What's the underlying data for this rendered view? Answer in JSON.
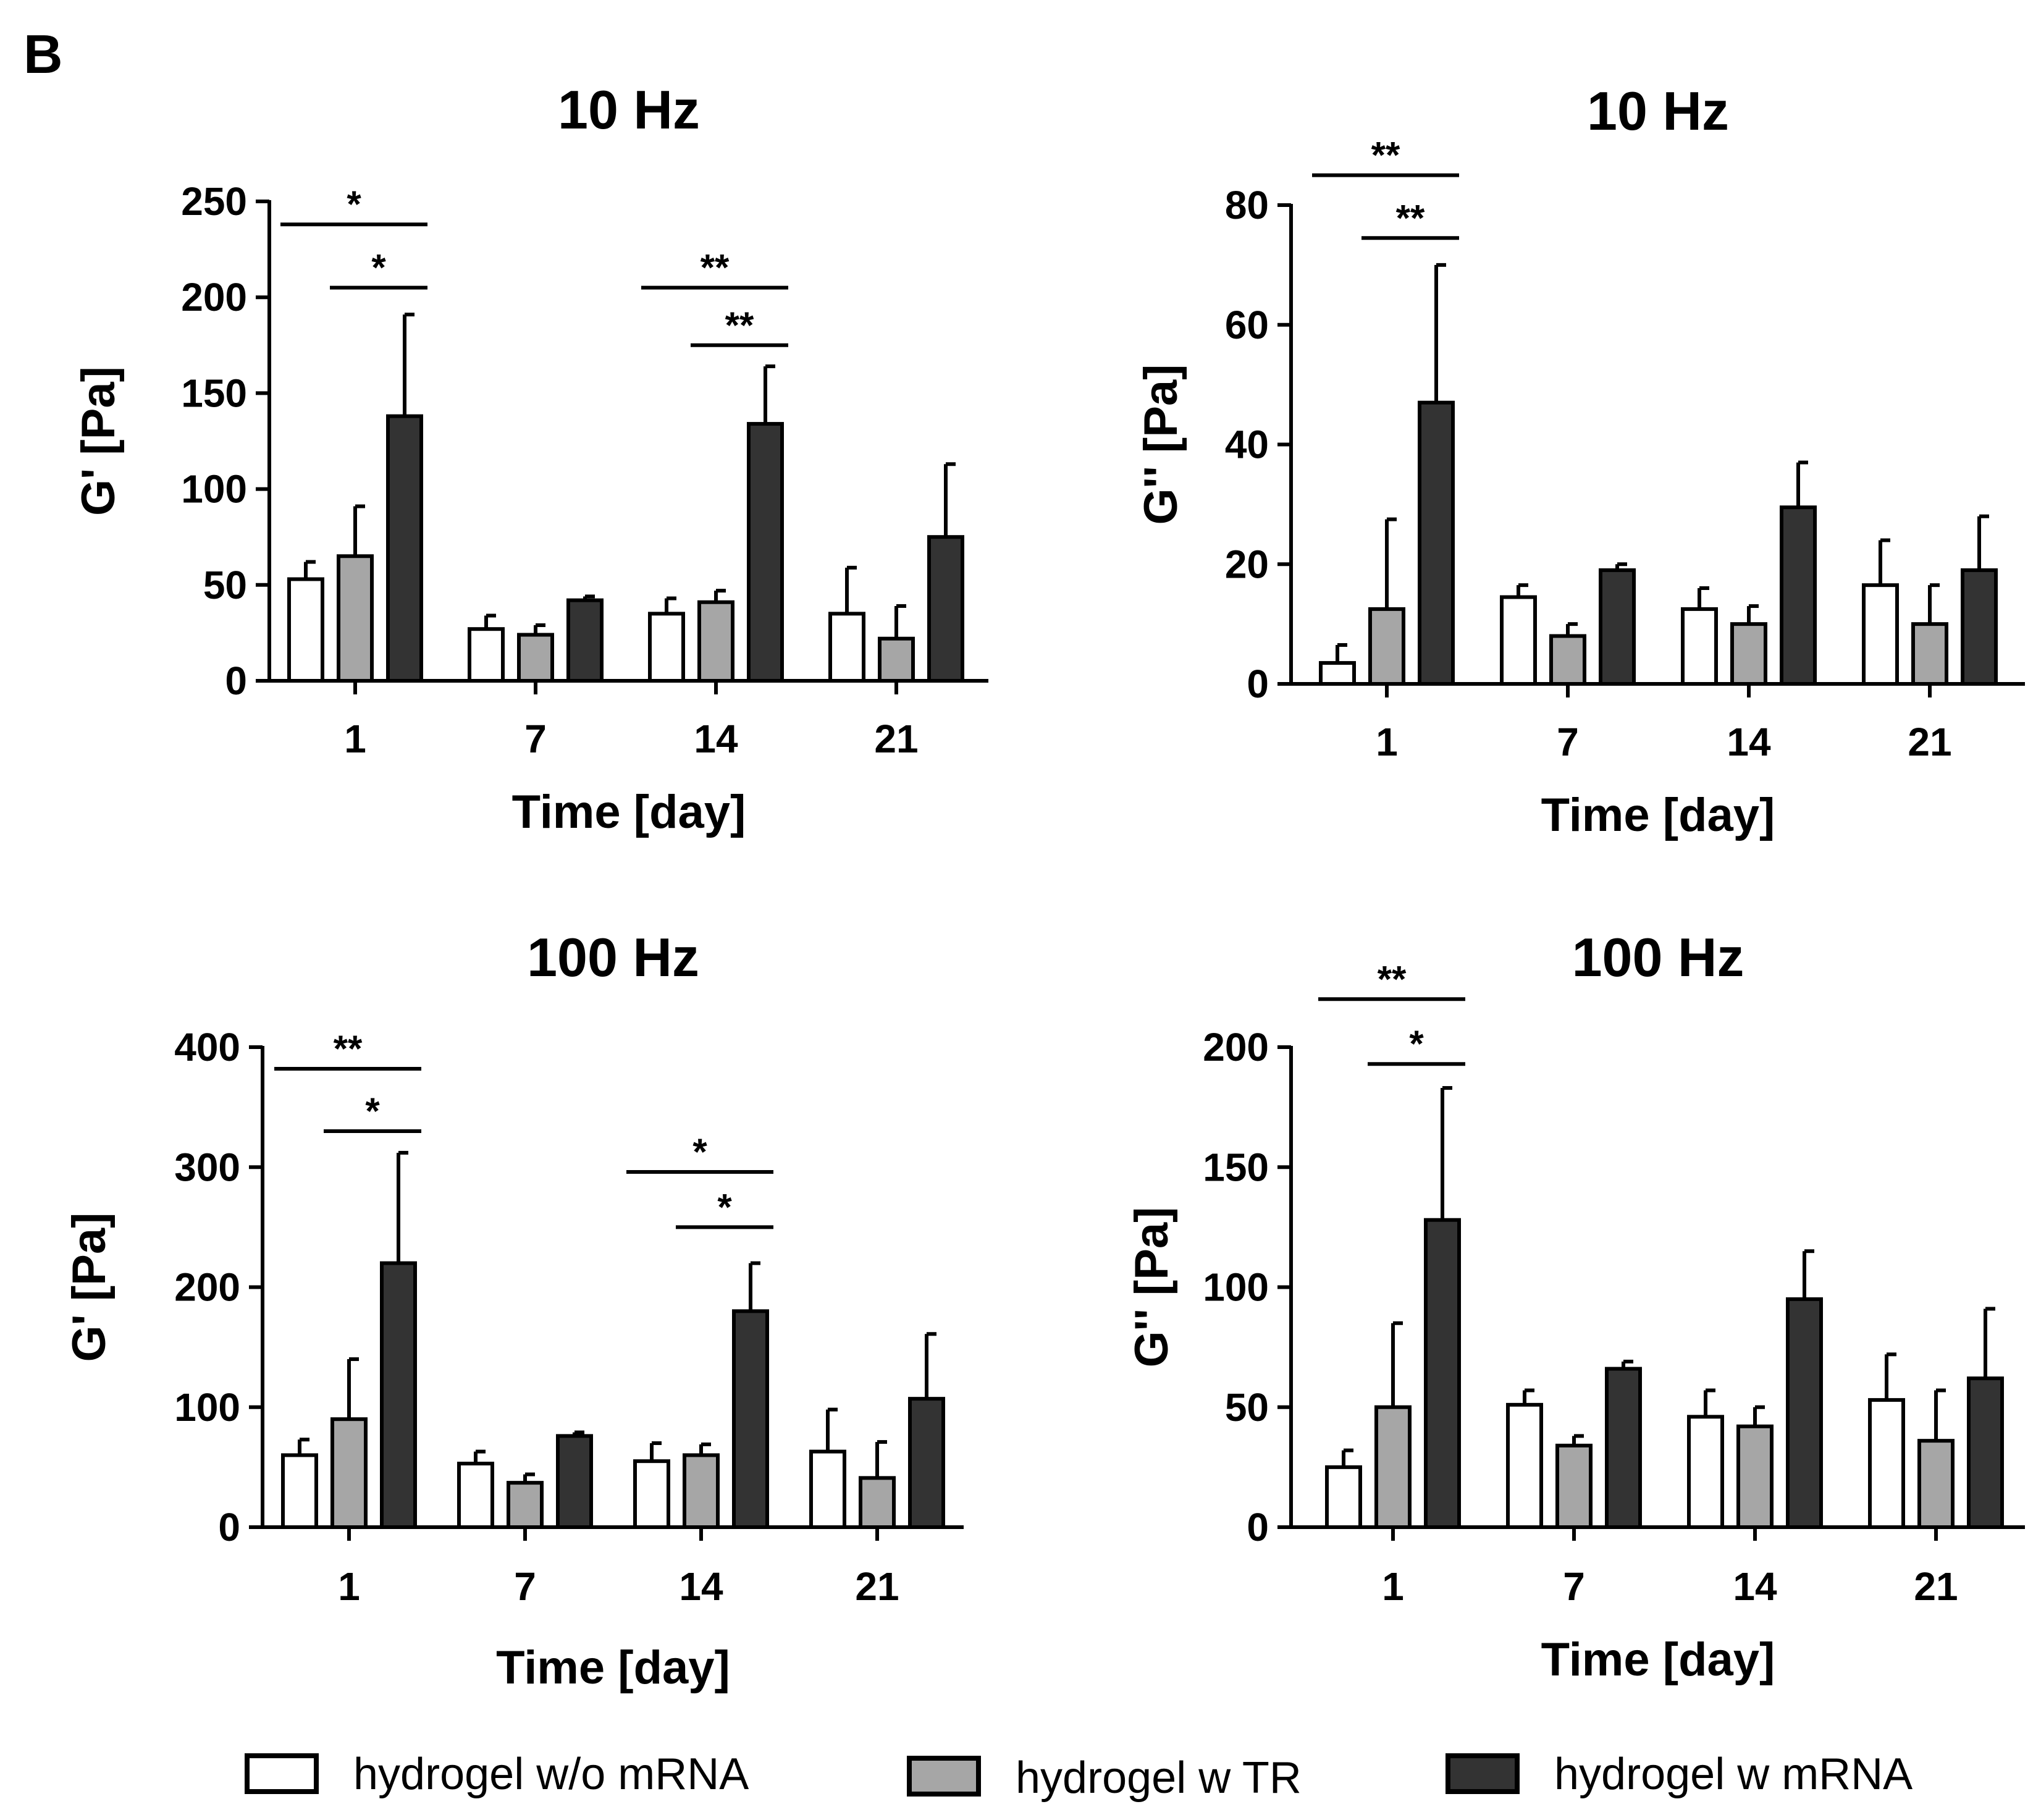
{
  "panel_label": "B",
  "legend": [
    {
      "label": "hydrogel w/o mRNA",
      "color": "#ffffff"
    },
    {
      "label": "hydrogel w TR",
      "color": "#a6a6a6"
    },
    {
      "label": "hydrogel w mRNA",
      "color": "#333333"
    }
  ],
  "chart_data": [
    {
      "type": "bar",
      "title": "10 Hz",
      "xlabel": "Time [day]",
      "ylabel": "G' [Pa]",
      "categories": [
        "1",
        "7",
        "14",
        "21"
      ],
      "ylim": [
        0,
        250
      ],
      "yticks": [
        0,
        50,
        100,
        150,
        200,
        250
      ],
      "series": [
        {
          "name": "hydrogel w/o mRNA",
          "values": [
            53,
            27,
            35,
            35
          ],
          "errors": [
            9,
            7,
            8,
            24
          ]
        },
        {
          "name": "hydrogel w TR",
          "values": [
            65,
            24,
            41,
            22
          ],
          "errors": [
            26,
            5,
            6,
            17
          ]
        },
        {
          "name": "hydrogel w mRNA",
          "values": [
            138,
            42,
            134,
            75
          ],
          "errors": [
            53,
            2,
            30,
            38
          ]
        }
      ],
      "significance": [
        {
          "group": 0,
          "from": 0,
          "to": 2,
          "label": "*",
          "y": 238
        },
        {
          "group": 0,
          "from": 1,
          "to": 2,
          "label": "*",
          "y": 205
        },
        {
          "group": 2,
          "from": 0,
          "to": 2,
          "label": "**",
          "y": 205
        },
        {
          "group": 2,
          "from": 1,
          "to": 2,
          "label": "**",
          "y": 175
        }
      ]
    },
    {
      "type": "bar",
      "title": "10 Hz",
      "xlabel": "Time [day]",
      "ylabel": "G'' [Pa]",
      "categories": [
        "1",
        "7",
        "14",
        "21"
      ],
      "ylim": [
        0,
        80
      ],
      "yticks": [
        0,
        20,
        40,
        60,
        80
      ],
      "series": [
        {
          "name": "hydrogel w/o mRNA",
          "values": [
            3.5,
            14.5,
            12.5,
            16.5
          ],
          "errors": [
            3,
            2,
            3.5,
            7.5
          ]
        },
        {
          "name": "hydrogel w TR",
          "values": [
            12.5,
            8,
            10,
            10
          ],
          "errors": [
            15,
            2,
            3,
            6.5
          ]
        },
        {
          "name": "hydrogel w mRNA",
          "values": [
            47,
            19,
            29.5,
            19
          ],
          "errors": [
            23,
            1,
            7.5,
            9
          ]
        }
      ],
      "significance": [
        {
          "group": 0,
          "from": 0,
          "to": 2,
          "label": "**",
          "y": 85
        },
        {
          "group": 0,
          "from": 1,
          "to": 2,
          "label": "**",
          "y": 74.5
        }
      ]
    },
    {
      "type": "bar",
      "title": "100 Hz",
      "xlabel": "Time [day]",
      "ylabel": "G' [Pa]",
      "categories": [
        "1",
        "7",
        "14",
        "21"
      ],
      "ylim": [
        0,
        400
      ],
      "yticks": [
        0,
        100,
        200,
        300,
        400
      ],
      "series": [
        {
          "name": "hydrogel w/o mRNA",
          "values": [
            60,
            53,
            55,
            63
          ],
          "errors": [
            13,
            10,
            15,
            35
          ]
        },
        {
          "name": "hydrogel w TR",
          "values": [
            90,
            37,
            60,
            41
          ],
          "errors": [
            50,
            7,
            9,
            30
          ]
        },
        {
          "name": "hydrogel w mRNA",
          "values": [
            220,
            76,
            180,
            107
          ],
          "errors": [
            92,
            3,
            40,
            54
          ]
        }
      ],
      "significance": [
        {
          "group": 0,
          "from": 0,
          "to": 2,
          "label": "**",
          "y": 382
        },
        {
          "group": 0,
          "from": 1,
          "to": 2,
          "label": "*",
          "y": 330
        },
        {
          "group": 2,
          "from": 0,
          "to": 2,
          "label": "*",
          "y": 296
        },
        {
          "group": 2,
          "from": 1,
          "to": 2,
          "label": "*",
          "y": 250
        }
      ]
    },
    {
      "type": "bar",
      "title": "100 Hz",
      "xlabel": "Time [day]",
      "ylabel": "G'' [Pa]",
      "categories": [
        "1",
        "7",
        "14",
        "21"
      ],
      "ylim": [
        0,
        200
      ],
      "yticks": [
        0,
        50,
        100,
        150,
        200
      ],
      "series": [
        {
          "name": "hydrogel w/o mRNA",
          "values": [
            25,
            51,
            46,
            53
          ],
          "errors": [
            7,
            6,
            11,
            19
          ]
        },
        {
          "name": "hydrogel w TR",
          "values": [
            50,
            34,
            42,
            36
          ],
          "errors": [
            35,
            4,
            8,
            21
          ]
        },
        {
          "name": "hydrogel w mRNA",
          "values": [
            128,
            66,
            95,
            62
          ],
          "errors": [
            55,
            3,
            20,
            29
          ]
        }
      ],
      "significance": [
        {
          "group": 0,
          "from": 0,
          "to": 2,
          "label": "**",
          "y": 220
        },
        {
          "group": 0,
          "from": 1,
          "to": 2,
          "label": "*",
          "y": 193
        }
      ]
    }
  ]
}
